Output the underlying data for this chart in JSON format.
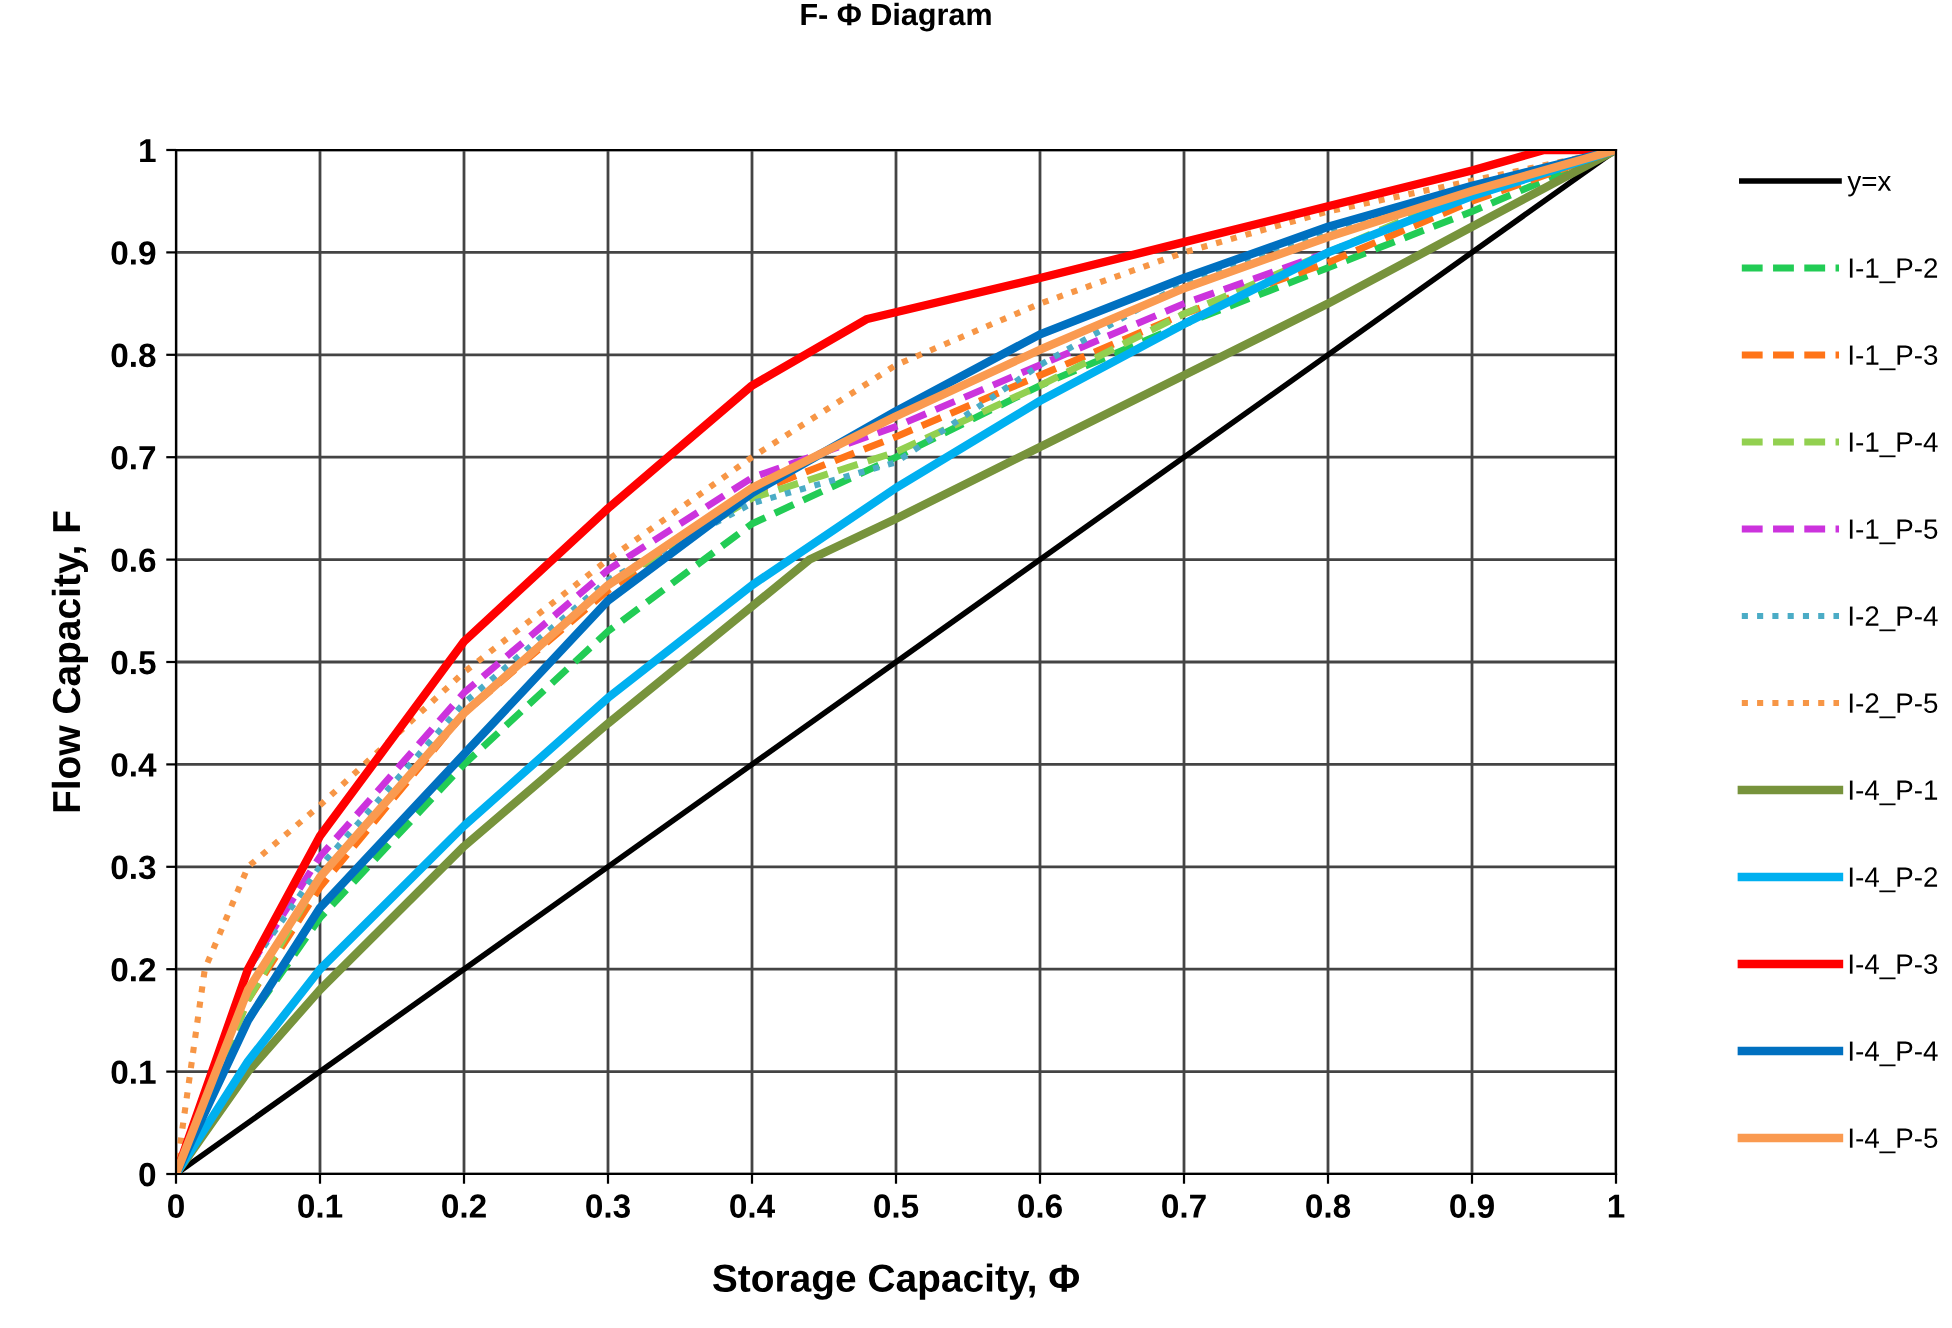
{
  "chart_data": {
    "type": "line",
    "title": "F- Φ Diagram",
    "xlabel": "Storage Capacity, Φ",
    "ylabel": "Flow Capacity, F",
    "x": [
      0,
      0.05,
      0.1,
      0.2,
      0.3,
      0.4,
      0.5,
      0.6,
      0.7,
      0.8,
      0.9,
      1
    ],
    "xlim": [
      0,
      1
    ],
    "ylim": [
      0,
      1
    ],
    "xticks": [
      0,
      0.1,
      0.2,
      0.3,
      0.4,
      0.5,
      0.6,
      0.7,
      0.8,
      0.9,
      1
    ],
    "yticks": [
      0,
      0.1,
      0.2,
      0.3,
      0.4,
      0.5,
      0.6,
      0.7,
      0.8,
      0.9,
      1
    ],
    "grid": true,
    "legend": "right",
    "marker": "none",
    "series": [
      {
        "name": "y=x",
        "color": "#000000",
        "line_style": "solid",
        "x": [
          0,
          1
        ],
        "values": [
          0,
          1
        ]
      },
      {
        "name": "I-1_P-2",
        "color": "#22cc55",
        "line_style": "dashed",
        "values": [
          0,
          0.15,
          0.25,
          0.4,
          0.53,
          0.635,
          0.7,
          0.77,
          0.83,
          0.885,
          0.94,
          1
        ]
      },
      {
        "name": "I-1_P-3",
        "color": "#ff7418",
        "line_style": "dashed",
        "values": [
          0,
          0.17,
          0.28,
          0.45,
          0.57,
          0.665,
          0.72,
          0.78,
          0.84,
          0.89,
          0.95,
          1
        ]
      },
      {
        "name": "I-1_P-4",
        "color": "#92d050",
        "line_style": "dashed",
        "values": [
          0,
          0.17,
          0.29,
          0.45,
          0.575,
          0.66,
          0.705,
          0.77,
          0.84,
          0.9,
          0.96,
          1
        ]
      },
      {
        "name": "I-1_P-5",
        "color": "#cc33dd",
        "line_style": "dashed",
        "values": [
          0,
          0.2,
          0.31,
          0.47,
          0.59,
          0.68,
          0.73,
          0.79,
          0.85,
          0.9,
          0.955,
          1
        ]
      },
      {
        "name": "I-2_P-4",
        "color": "#4bacc6",
        "line_style": "dotted",
        "values": [
          0,
          0.2,
          0.3,
          0.46,
          0.58,
          0.655,
          0.695,
          0.79,
          0.87,
          0.92,
          0.96,
          1
        ]
      },
      {
        "name": "I-2_P-5",
        "color": "#f79646",
        "line_style": "dotted",
        "x": [
          0,
          0.02,
          0.05,
          0.1,
          0.2,
          0.3,
          0.4,
          0.5,
          0.6,
          0.7,
          0.8,
          0.9,
          1
        ],
        "values": [
          0,
          0.2,
          0.3,
          0.36,
          0.49,
          0.6,
          0.7,
          0.79,
          0.85,
          0.9,
          0.94,
          0.97,
          1
        ]
      },
      {
        "name": "I-4_P-1",
        "color": "#77933c",
        "line_style": "solid",
        "x": [
          0,
          0.05,
          0.1,
          0.2,
          0.3,
          0.44,
          0.5,
          0.6,
          0.7,
          0.8,
          0.9,
          1
        ],
        "values": [
          0,
          0.1,
          0.18,
          0.32,
          0.44,
          0.6,
          0.64,
          0.71,
          0.78,
          0.85,
          0.925,
          1
        ]
      },
      {
        "name": "I-4_P-2",
        "color": "#00b0f0",
        "line_style": "solid",
        "values": [
          0,
          0.11,
          0.2,
          0.34,
          0.465,
          0.575,
          0.67,
          0.755,
          0.83,
          0.9,
          0.955,
          1
        ]
      },
      {
        "name": "I-4_P-3",
        "color": "#ff0000",
        "line_style": "solid",
        "x": [
          0,
          0.05,
          0.1,
          0.2,
          0.3,
          0.4,
          0.48,
          0.6,
          0.7,
          0.8,
          0.9,
          0.95,
          1
        ],
        "values": [
          0,
          0.2,
          0.33,
          0.52,
          0.65,
          0.77,
          0.835,
          0.875,
          0.91,
          0.945,
          0.98,
          1,
          1
        ]
      },
      {
        "name": "I-4_P-4",
        "color": "#0070c0",
        "line_style": "solid",
        "values": [
          0,
          0.15,
          0.26,
          0.41,
          0.56,
          0.665,
          0.745,
          0.82,
          0.875,
          0.925,
          0.965,
          1
        ]
      },
      {
        "name": "I-4_P-5",
        "color": "#fa9a50",
        "line_style": "solid",
        "values": [
          0,
          0.18,
          0.29,
          0.45,
          0.575,
          0.67,
          0.74,
          0.805,
          0.865,
          0.915,
          0.96,
          1
        ]
      }
    ]
  }
}
